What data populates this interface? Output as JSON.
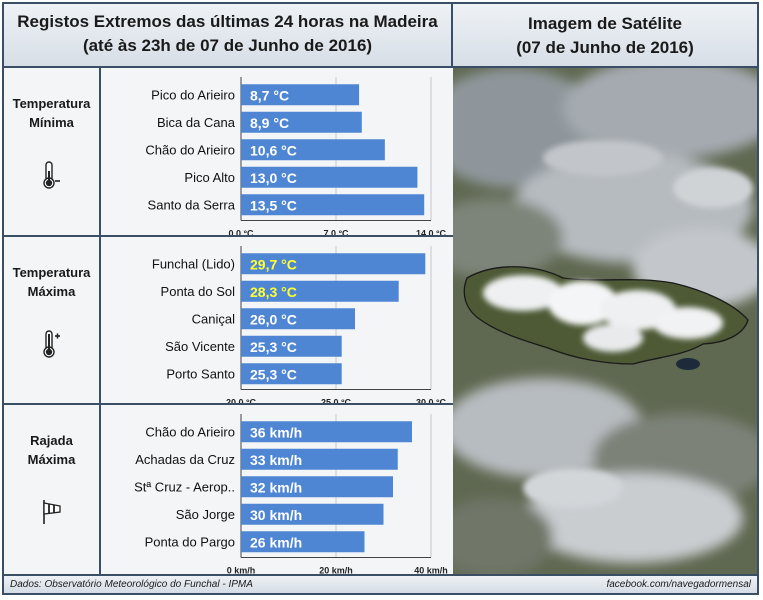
{
  "header": {
    "left_line1": "Registos Extremos das últimas 24 horas na Madeira",
    "left_line2": "(até às 23h de 07 de Junho de 2016)",
    "right_line1": "Imagem de Satélite",
    "right_line2": "(07 de Junho de 2016)"
  },
  "sections": [
    {
      "label_line1": "Temperatura",
      "label_line2": "Mínima",
      "icon": "thermometer-minus-icon"
    },
    {
      "label_line1": "Temperatura",
      "label_line2": "Máxima",
      "icon": "thermometer-plus-icon"
    },
    {
      "label_line1": "Rajada",
      "label_line2": "Máxima",
      "icon": "windsock-icon"
    }
  ],
  "chart_data": [
    {
      "type": "bar",
      "orientation": "horizontal",
      "categories": [
        "Pico do Arieiro",
        "Bica da Cana",
        "Chão do Arieiro",
        "Pico Alto",
        "Santo da Serra"
      ],
      "values": [
        8.7,
        8.9,
        10.6,
        13.0,
        13.5
      ],
      "data_labels": [
        "8,7 °C",
        "8,9 °C",
        "10,6 °C",
        "13,0 °C",
        "13,5 °C"
      ],
      "highlight": [
        false,
        false,
        false,
        false,
        false
      ],
      "xlim": [
        0,
        14
      ],
      "xticks": [
        0,
        7,
        14
      ],
      "xtick_labels": [
        "0,0 °C",
        "7,0 °C",
        "14,0 °C"
      ],
      "grid": true,
      "bar_color": "#4f86d4"
    },
    {
      "type": "bar",
      "orientation": "horizontal",
      "categories": [
        "Funchal (Lido)",
        "Ponta do Sol",
        "Caniçal",
        "São Vicente",
        "Porto Santo"
      ],
      "values": [
        29.7,
        28.3,
        26.0,
        25.3,
        25.3
      ],
      "data_labels": [
        "29,7 °C",
        "28,3 °C",
        "26,0 °C",
        "25,3 °C",
        "25,3 °C"
      ],
      "highlight": [
        true,
        true,
        false,
        false,
        false
      ],
      "xlim": [
        20,
        30
      ],
      "xticks": [
        20,
        25,
        30
      ],
      "xtick_labels": [
        "20,0 °C",
        "25,0 °C",
        "30,0 °C"
      ],
      "grid": true,
      "bar_color": "#4f86d4"
    },
    {
      "type": "bar",
      "orientation": "horizontal",
      "categories": [
        "Chão do Arieiro",
        "Achadas da Cruz",
        "Stª Cruz - Aerop..",
        "São Jorge",
        "Ponta do Pargo"
      ],
      "values": [
        36,
        33,
        32,
        30,
        26
      ],
      "data_labels": [
        "36 km/h",
        "33 km/h",
        "32 km/h",
        "30 km/h",
        "26 km/h"
      ],
      "highlight": [
        false,
        false,
        false,
        false,
        false
      ],
      "xlim": [
        0,
        40
      ],
      "xticks": [
        0,
        20,
        40
      ],
      "xtick_labels": [
        "0 km/h",
        "20 km/h",
        "40 km/h"
      ],
      "grid": true,
      "bar_color": "#4f86d4"
    }
  ],
  "colors": {
    "bar": "#4f86d4",
    "label_text": "#ffffff",
    "highlight_text": "#ffff33",
    "border": "#3a4f66"
  },
  "footer": {
    "source": "Dados:  Observatório Meteorológico do Funchal - IPMA",
    "credit": "facebook.com/navegadormensal"
  }
}
